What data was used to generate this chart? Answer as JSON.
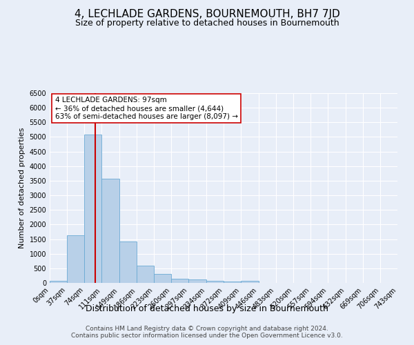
{
  "title": "4, LECHLADE GARDENS, BOURNEMOUTH, BH7 7JD",
  "subtitle": "Size of property relative to detached houses in Bournemouth",
  "xlabel": "Distribution of detached houses by size in Bournemouth",
  "ylabel": "Number of detached properties",
  "bin_edges": [
    0,
    37,
    74,
    111,
    149,
    186,
    223,
    260,
    297,
    334,
    372,
    409,
    446,
    483,
    520,
    557,
    594,
    632,
    669,
    706,
    743
  ],
  "bin_counts": [
    60,
    1630,
    5080,
    3580,
    1420,
    580,
    300,
    150,
    110,
    80,
    50,
    60,
    10,
    10,
    5,
    5,
    5,
    5,
    5,
    5
  ],
  "bar_color": "#b8d0e8",
  "bar_edge_color": "#6aaad4",
  "property_size": 97,
  "vline_color": "#cc0000",
  "annotation_text": "4 LECHLADE GARDENS: 97sqm\n← 36% of detached houses are smaller (4,644)\n63% of semi-detached houses are larger (8,097) →",
  "annotation_box_color": "#ffffff",
  "annotation_box_edge_color": "#cc0000",
  "ylim": [
    0,
    6500
  ],
  "yticks": [
    0,
    500,
    1000,
    1500,
    2000,
    2500,
    3000,
    3500,
    4000,
    4500,
    5000,
    5500,
    6000,
    6500
  ],
  "footer_line1": "Contains HM Land Registry data © Crown copyright and database right 2024.",
  "footer_line2": "Contains public sector information licensed under the Open Government Licence v3.0.",
  "background_color": "#e8eef8",
  "plot_bg_color": "#e8eef8",
  "grid_color": "#ffffff",
  "title_fontsize": 11,
  "subtitle_fontsize": 9,
  "xlabel_fontsize": 9,
  "ylabel_fontsize": 8,
  "tick_fontsize": 7,
  "footer_fontsize": 6.5,
  "annotation_fontsize": 7.5
}
